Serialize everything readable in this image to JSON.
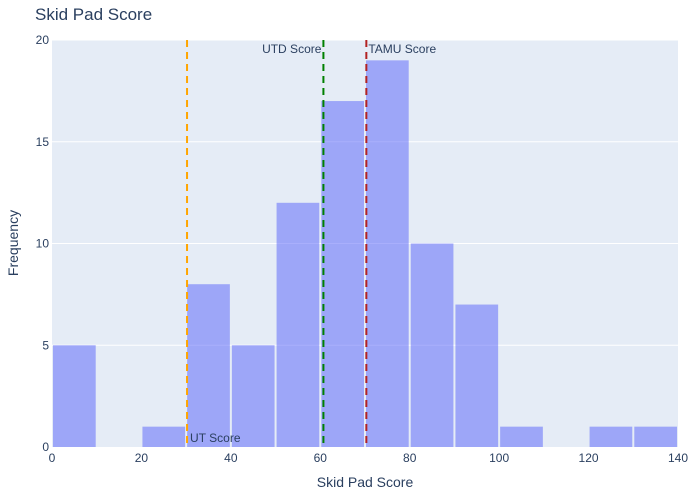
{
  "chart_data": {
    "type": "bar",
    "title": "Skid Pad Score",
    "xlabel": "Skid Pad Score",
    "ylabel": "Frequency",
    "xlim": [
      0,
      140
    ],
    "ylim": [
      0,
      20
    ],
    "xticks": [
      0,
      20,
      40,
      60,
      80,
      100,
      120,
      140
    ],
    "yticks": [
      0,
      5,
      10,
      15,
      20
    ],
    "bin_width": 10,
    "bins": [
      {
        "start": 0,
        "end": 10,
        "value": 5
      },
      {
        "start": 10,
        "end": 20,
        "value": 0
      },
      {
        "start": 20,
        "end": 30,
        "value": 1
      },
      {
        "start": 30,
        "end": 40,
        "value": 8
      },
      {
        "start": 40,
        "end": 50,
        "value": 5
      },
      {
        "start": 50,
        "end": 60,
        "value": 12
      },
      {
        "start": 60,
        "end": 70,
        "value": 17
      },
      {
        "start": 70,
        "end": 80,
        "value": 19
      },
      {
        "start": 80,
        "end": 90,
        "value": 10
      },
      {
        "start": 90,
        "end": 100,
        "value": 7
      },
      {
        "start": 100,
        "end": 110,
        "value": 1
      },
      {
        "start": 110,
        "end": 120,
        "value": 0
      },
      {
        "start": 120,
        "end": 130,
        "value": 1
      },
      {
        "start": 130,
        "end": 140,
        "value": 1
      }
    ],
    "bar_color": "#636efa",
    "bar_opacity": 0.55,
    "plot_bg": "#e5ecf6",
    "grid": true,
    "reference_lines": [
      {
        "label": "UT Score",
        "x": 30.2,
        "color": "#ffa500",
        "label_position": "bottom-right"
      },
      {
        "label": "UTD Score",
        "x": 60.7,
        "color": "#008000",
        "label_position": "top-left"
      },
      {
        "label": "TAMU Score",
        "x": 70.3,
        "color": "#b22222",
        "label_position": "top-right"
      }
    ]
  }
}
